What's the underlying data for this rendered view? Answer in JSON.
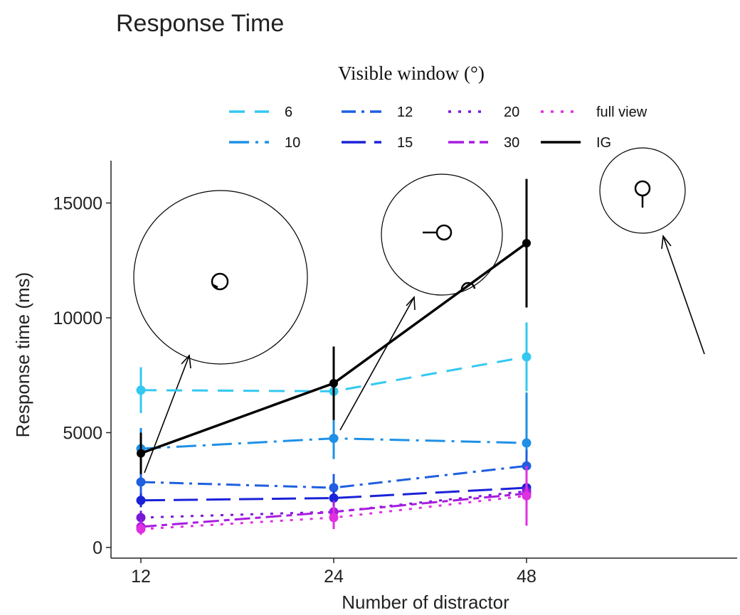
{
  "chart_data": {
    "type": "line",
    "title": "Response Time",
    "xlabel": "Number of distractor",
    "ylabel": "Response time (ms)",
    "x": [
      12,
      24,
      48
    ],
    "x_tick_labels": [
      "12",
      "24",
      "48"
    ],
    "ylim": [
      0,
      17000
    ],
    "y_ticks": [
      0,
      5000,
      10000,
      15000
    ],
    "y_tick_labels": [
      "0",
      "5000",
      "10000",
      "15000"
    ],
    "grid": false,
    "legend": {
      "title": "Visible window (°)",
      "position": "top",
      "entries": [
        "6",
        "12",
        "20",
        "full view",
        "10",
        "15",
        "30",
        "IG"
      ]
    },
    "series": [
      {
        "name": "6",
        "color": "#33c8f0",
        "dash": "dashed",
        "values": [
          6850,
          6800,
          8300
        ],
        "err": [
          1000,
          1200,
          1500
        ]
      },
      {
        "name": "10",
        "color": "#1e90e6",
        "dash": "dotdash",
        "values": [
          4300,
          4750,
          4550
        ],
        "err": [
          900,
          900,
          2200
        ]
      },
      {
        "name": "12",
        "color": "#1f5fe0",
        "dash": "dotdash2",
        "values": [
          2850,
          2600,
          3550
        ],
        "err": [
          600,
          600,
          700
        ]
      },
      {
        "name": "15",
        "color": "#1a22d8",
        "dash": "longdash",
        "values": [
          2050,
          2150,
          2600
        ],
        "err": [
          300,
          300,
          400
        ]
      },
      {
        "name": "20",
        "color": "#7a18d8",
        "dash": "dotted",
        "values": [
          1300,
          1550,
          2450
        ],
        "err": [
          300,
          300,
          600
        ]
      },
      {
        "name": "30",
        "color": "#a81ce0",
        "dash": "twodash",
        "values": [
          900,
          1550,
          2350
        ],
        "err": [
          300,
          500,
          700
        ]
      },
      {
        "name": "full view",
        "color": "#e030e0",
        "dash": "dotted",
        "values": [
          800,
          1300,
          2250
        ],
        "err": [
          250,
          500,
          1300
        ]
      },
      {
        "name": "IG",
        "color": "#000000",
        "dash": "solid",
        "values": [
          4100,
          7150,
          13250
        ],
        "err": [
          900,
          1600,
          2800
        ]
      }
    ]
  }
}
